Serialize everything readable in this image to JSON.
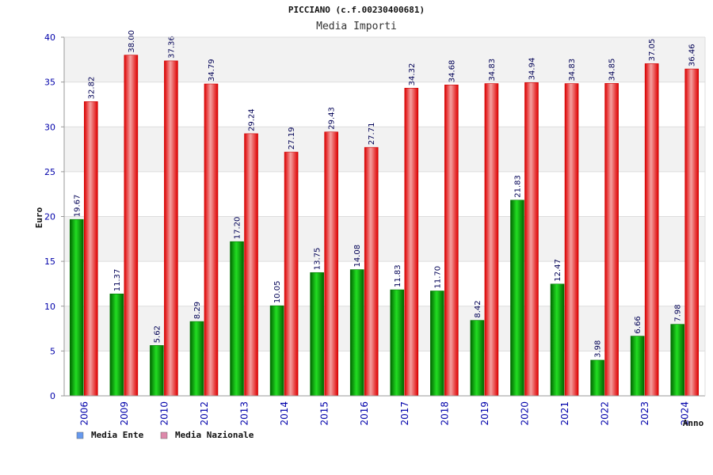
{
  "chart_data": {
    "type": "bar",
    "title": "PICCIANO (c.f.00230400681)",
    "subtitle": "Media Importi",
    "xlabel": "Anno",
    "ylabel": "Euro",
    "ylim": [
      0,
      40
    ],
    "yticks": [
      0,
      5,
      10,
      15,
      20,
      25,
      30,
      35,
      40
    ],
    "grid": "horizontal bands",
    "legend_position": "bottom-left",
    "categories": [
      "2006",
      "2009",
      "2010",
      "2012",
      "2013",
      "2014",
      "2015",
      "2016",
      "2017",
      "2018",
      "2019",
      "2020",
      "2021",
      "2022",
      "2023",
      "2024"
    ],
    "series": [
      {
        "name": "Media Ente",
        "color": "#00b000",
        "legend_color": "#6699ee",
        "values": [
          19.67,
          11.37,
          5.62,
          8.29,
          17.2,
          10.05,
          13.75,
          14.08,
          11.83,
          11.7,
          8.42,
          21.83,
          12.47,
          3.98,
          6.66,
          7.98
        ],
        "labels": [
          "19.67",
          "11.37",
          "5.62",
          "8.29",
          "17.20",
          "10.05",
          "13.75",
          "14.08",
          "11.83",
          "11.70",
          "8.42",
          "21.83",
          "12.47",
          "3.98",
          "6.66",
          "7.98"
        ]
      },
      {
        "name": "Media Nazionale",
        "color": "#ee1111",
        "legend_color": "#dd88aa",
        "values": [
          32.82,
          38.0,
          37.36,
          34.79,
          29.24,
          27.19,
          29.43,
          27.71,
          34.32,
          34.68,
          34.83,
          34.94,
          34.83,
          34.85,
          37.05,
          36.46
        ],
        "labels": [
          "32.82",
          "38.00",
          "37.36",
          "34.79",
          "29.24",
          "27.19",
          "29.43",
          "27.71",
          "34.32",
          "34.68",
          "34.83",
          "34.94",
          "34.83",
          "34.85",
          "37.05",
          "36.46"
        ]
      }
    ]
  }
}
